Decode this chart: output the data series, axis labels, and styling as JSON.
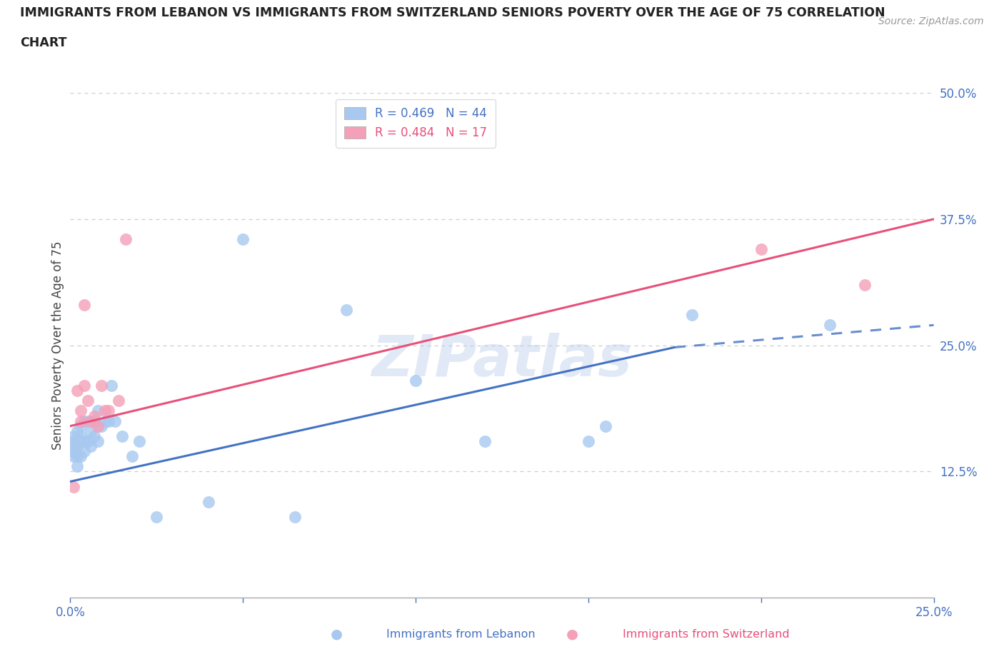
{
  "title_line1": "IMMIGRANTS FROM LEBANON VS IMMIGRANTS FROM SWITZERLAND SENIORS POVERTY OVER THE AGE OF 75 CORRELATION",
  "title_line2": "CHART",
  "source": "Source: ZipAtlas.com",
  "xlabel_lebanon": "Immigrants from Lebanon",
  "xlabel_switzerland": "Immigrants from Switzerland",
  "ylabel": "Seniors Poverty Over the Age of 75",
  "r_lebanon": 0.469,
  "n_lebanon": 44,
  "r_switzerland": 0.484,
  "n_switzerland": 17,
  "xlim": [
    0.0,
    0.25
  ],
  "ylim": [
    0.0,
    0.5
  ],
  "xticks": [
    0.0,
    0.05,
    0.1,
    0.15,
    0.2,
    0.25
  ],
  "ytick_right": [
    0.125,
    0.25,
    0.375,
    0.5
  ],
  "color_lebanon": "#A8C8F0",
  "color_switzerland": "#F4A0B8",
  "color_lebanon_line": "#4472C4",
  "color_switzerland_line": "#E8507A",
  "color_text_blue": "#4472C4",
  "color_text_pink": "#E8507A",
  "color_text_title": "#222222",
  "color_source": "#999999",
  "watermark": "ZIPatlas",
  "lebanon_x": [
    0.001,
    0.001,
    0.001,
    0.001,
    0.001,
    0.002,
    0.002,
    0.002,
    0.002,
    0.002,
    0.003,
    0.003,
    0.003,
    0.003,
    0.004,
    0.004,
    0.004,
    0.005,
    0.005,
    0.006,
    0.006,
    0.007,
    0.007,
    0.008,
    0.008,
    0.009,
    0.01,
    0.011,
    0.012,
    0.013,
    0.015,
    0.018,
    0.02,
    0.025,
    0.04,
    0.05,
    0.065,
    0.08,
    0.1,
    0.12,
    0.15,
    0.155,
    0.18,
    0.22
  ],
  "lebanon_y": [
    0.14,
    0.145,
    0.15,
    0.155,
    0.16,
    0.13,
    0.14,
    0.15,
    0.155,
    0.165,
    0.14,
    0.155,
    0.16,
    0.17,
    0.145,
    0.155,
    0.175,
    0.155,
    0.175,
    0.15,
    0.165,
    0.16,
    0.175,
    0.155,
    0.185,
    0.17,
    0.175,
    0.175,
    0.21,
    0.175,
    0.16,
    0.14,
    0.155,
    0.08,
    0.095,
    0.355,
    0.08,
    0.285,
    0.215,
    0.155,
    0.155,
    0.17,
    0.28,
    0.27
  ],
  "switzerland_x": [
    0.001,
    0.002,
    0.003,
    0.003,
    0.004,
    0.004,
    0.005,
    0.006,
    0.007,
    0.008,
    0.009,
    0.01,
    0.011,
    0.014,
    0.016,
    0.2,
    0.23
  ],
  "switzerland_y": [
    0.11,
    0.205,
    0.175,
    0.185,
    0.21,
    0.29,
    0.195,
    0.175,
    0.18,
    0.17,
    0.21,
    0.185,
    0.185,
    0.195,
    0.355,
    0.345,
    0.31
  ],
  "trend_lb_x0": 0.0,
  "trend_lb_y0": 0.115,
  "trend_lb_solid_x1": 0.175,
  "trend_lb_solid_y1": 0.248,
  "trend_lb_dash_x1": 0.25,
  "trend_lb_dash_y1": 0.27,
  "trend_sw_x0": 0.0,
  "trend_sw_y0": 0.17,
  "trend_sw_x1": 0.25,
  "trend_sw_y1": 0.375,
  "background_color": "#FFFFFF",
  "grid_color": "#CCCCCC",
  "axis_color": "#AAAAAA"
}
